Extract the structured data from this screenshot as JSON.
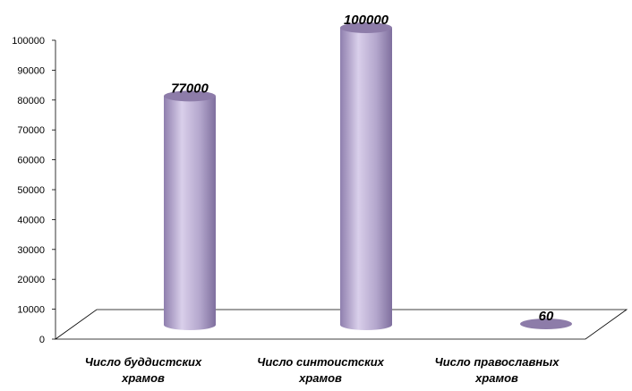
{
  "chart_data": {
    "type": "bar",
    "style": "3d-cylinder",
    "categories": [
      "Число буддистских храмов",
      "Число синтоистских храмов",
      "Число православных храмов"
    ],
    "category_lines": [
      [
        "Число буддистских",
        "храмов"
      ],
      [
        "Число синтоистских",
        "храмов"
      ],
      [
        "Число православных",
        "храмов"
      ]
    ],
    "values": [
      77000,
      100000,
      60
    ],
    "data_labels": [
      "77000",
      "100000",
      "60"
    ],
    "ylim": [
      0,
      100000
    ],
    "y_ticks": [
      "0",
      "10000",
      "20000",
      "30000",
      "40000",
      "50000",
      "60000",
      "70000",
      "80000",
      "90000",
      "100000"
    ],
    "grid": false,
    "legend": "none",
    "colors": {
      "bar": "#b3a6cc",
      "bar_dark": "#8f7fae",
      "bar_light": "#d9cfea",
      "bar_top": "#8d7ca9",
      "floor_stroke": "#000000"
    }
  }
}
